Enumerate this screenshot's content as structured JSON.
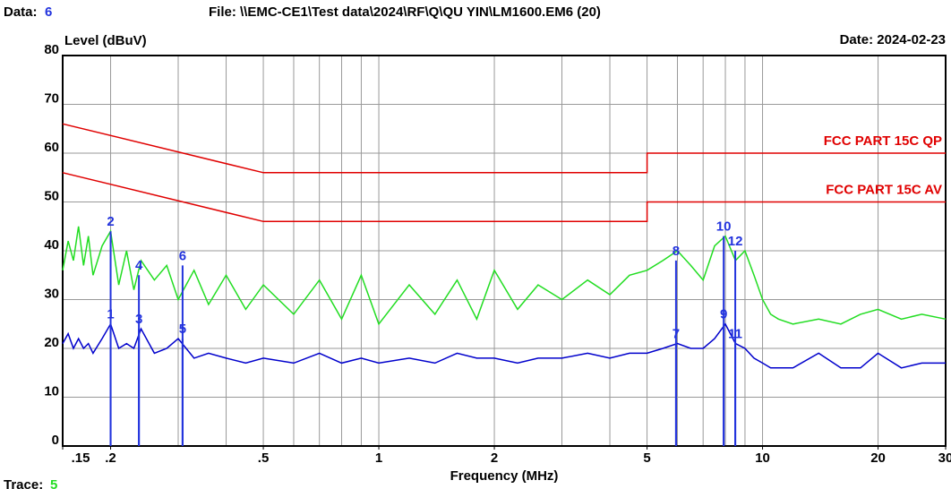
{
  "chart_data": {
    "type": "line",
    "data_label": "Data:",
    "data_number": "6",
    "file": "File: \\\\EMC-CE1\\Test data\\2024\\RF\\Q\\QU YIN\\LM1600.EM6  (20)",
    "date": "Date: 2024-02-23",
    "ylabel": "Level (dBuV)",
    "xlabel": "Frequency (MHz)",
    "trace_label": "Trace:",
    "trace_number": "5",
    "log_x": true,
    "grid": true,
    "xlim": [
      0.15,
      30
    ],
    "ylim": [
      0,
      80
    ],
    "yticks": [
      0,
      10,
      20,
      30,
      40,
      50,
      60,
      70,
      80
    ],
    "xticks": [
      {
        "value": 0.15,
        "label": ".15"
      },
      {
        "value": 0.2,
        "label": ".2"
      },
      {
        "value": 0.5,
        "label": ".5"
      },
      1,
      2,
      5,
      10,
      20,
      30
    ],
    "xgrid": [
      0.2,
      0.3,
      0.4,
      0.5,
      0.6,
      0.7,
      0.8,
      0.9,
      1,
      2,
      3,
      4,
      5,
      6,
      7,
      8,
      9,
      10,
      20
    ],
    "series": [
      {
        "name": "FCC PART 15C QP",
        "color": "#e00000",
        "x": [
          0.15,
          0.5,
          5,
          5,
          30
        ],
        "values": [
          66,
          56,
          56,
          60,
          60
        ]
      },
      {
        "name": "FCC PART 15C AV",
        "color": "#e00000",
        "x": [
          0.15,
          0.5,
          5,
          5,
          30
        ],
        "values": [
          56,
          46,
          46,
          50,
          50
        ]
      },
      {
        "color": "#22dd22",
        "x": [
          0.15,
          0.155,
          0.16,
          0.165,
          0.17,
          0.175,
          0.18,
          0.19,
          0.2,
          0.21,
          0.22,
          0.23,
          0.24,
          0.26,
          0.28,
          0.3,
          0.33,
          0.36,
          0.4,
          0.45,
          0.5,
          0.6,
          0.7,
          0.8,
          0.9,
          1,
          1.2,
          1.4,
          1.6,
          1.8,
          2,
          2.3,
          2.6,
          3,
          3.5,
          4,
          4.5,
          5,
          5.5,
          6,
          6.5,
          7,
          7.5,
          8,
          8.5,
          9,
          9.5,
          10,
          10.5,
          11,
          12,
          14,
          16,
          18,
          20,
          23,
          26,
          30
        ],
        "values": [
          36,
          42,
          38,
          45,
          37,
          43,
          35,
          41,
          44,
          33,
          40,
          32,
          38,
          34,
          37,
          30,
          36,
          29,
          35,
          28,
          33,
          27,
          34,
          26,
          35,
          25,
          33,
          27,
          34,
          26,
          36,
          28,
          33,
          30,
          34,
          31,
          35,
          36,
          38,
          40,
          37,
          34,
          41,
          43,
          38,
          40,
          35,
          30,
          27,
          26,
          25,
          26,
          25,
          27,
          28,
          26,
          27,
          26
        ]
      },
      {
        "color": "#0000cc",
        "x": [
          0.15,
          0.155,
          0.16,
          0.165,
          0.17,
          0.175,
          0.18,
          0.19,
          0.2,
          0.21,
          0.22,
          0.23,
          0.24,
          0.26,
          0.28,
          0.3,
          0.33,
          0.36,
          0.4,
          0.45,
          0.5,
          0.6,
          0.7,
          0.8,
          0.9,
          1,
          1.2,
          1.4,
          1.6,
          1.8,
          2,
          2.3,
          2.6,
          3,
          3.5,
          4,
          4.5,
          5,
          5.5,
          6,
          6.5,
          7,
          7.5,
          8,
          8.5,
          9,
          9.5,
          10,
          10.5,
          11,
          12,
          14,
          16,
          18,
          20,
          23,
          26,
          30
        ],
        "values": [
          21,
          23,
          20,
          22,
          20,
          21,
          19,
          22,
          25,
          20,
          21,
          20,
          24,
          19,
          20,
          22,
          18,
          19,
          18,
          17,
          18,
          17,
          19,
          17,
          18,
          17,
          18,
          17,
          19,
          18,
          18,
          17,
          18,
          18,
          19,
          18,
          19,
          19,
          20,
          21,
          20,
          20,
          22,
          25,
          21,
          20,
          18,
          17,
          16,
          16,
          16,
          19,
          16,
          16,
          19,
          16,
          17,
          17
        ]
      }
    ],
    "markers": {
      "color": "#2233dd",
      "labels": [
        "1",
        "2",
        "3",
        "4",
        "5",
        "6",
        "7",
        "8",
        "9",
        "10",
        "11",
        "12"
      ],
      "x": [
        0.2,
        0.2,
        0.237,
        0.237,
        0.308,
        0.308,
        5.95,
        5.95,
        7.92,
        7.92,
        8.49,
        8.49
      ],
      "values": [
        25,
        44,
        24,
        35,
        22,
        37,
        21,
        38,
        25,
        43,
        21,
        40
      ]
    }
  }
}
